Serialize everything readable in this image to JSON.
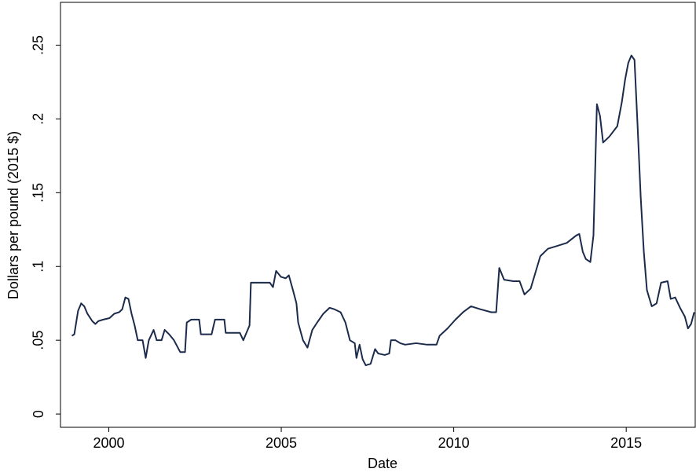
{
  "chart_data": {
    "type": "line",
    "x_label": "Date",
    "y_label": "Dollars per pound (2015 $)",
    "xlim": [
      1998.6,
      2017.0
    ],
    "ylim": [
      -0.009,
      0.279
    ],
    "xticks": [
      2000,
      2005,
      2010,
      2015
    ],
    "yticks": [
      0,
      {
        "value": 0.05,
        "label": ".05"
      },
      {
        "value": 0.1,
        "label": ".1"
      },
      {
        "value": 0.15,
        "label": ".15"
      },
      {
        "value": 0.2,
        "label": ".2"
      },
      {
        "value": 0.25,
        "label": ".25"
      }
    ],
    "grid": false,
    "series": [
      {
        "color": "#1c2b4b",
        "x": [
          1998.93,
          1999.0,
          1999.11,
          1999.2,
          1999.29,
          1999.38,
          1999.52,
          1999.61,
          1999.7,
          1999.84,
          2000.02,
          2000.16,
          2000.3,
          2000.39,
          2000.48,
          2000.57,
          2000.66,
          2000.75,
          2000.84,
          2000.98,
          2001.07,
          2001.16,
          2001.3,
          2001.39,
          2001.53,
          2001.62,
          2001.75,
          2001.89,
          2001.98,
          2002.07,
          2002.21,
          2002.26,
          2002.39,
          2002.62,
          2002.67,
          2002.98,
          2003.08,
          2003.35,
          2003.39,
          2003.8,
          2003.9,
          2004.08,
          2004.12,
          2004.67,
          2004.76,
          2004.85,
          2004.99,
          2005.13,
          2005.22,
          2005.35,
          2005.44,
          2005.49,
          2005.63,
          2005.76,
          2005.9,
          2006.04,
          2006.22,
          2006.4,
          2006.54,
          2006.72,
          2006.86,
          2006.99,
          2007.13,
          2007.18,
          2007.27,
          2007.36,
          2007.45,
          2007.59,
          2007.72,
          2007.81,
          2008.0,
          2008.13,
          2008.18,
          2008.31,
          2008.45,
          2008.59,
          2008.91,
          2009.23,
          2009.5,
          2009.59,
          2009.82,
          2010.05,
          2010.27,
          2010.5,
          2010.77,
          2011.09,
          2011.23,
          2011.32,
          2011.46,
          2011.73,
          2011.91,
          2012.05,
          2012.23,
          2012.37,
          2012.51,
          2012.73,
          2013.01,
          2013.28,
          2013.55,
          2013.64,
          2013.74,
          2013.83,
          2013.96,
          2014.05,
          2014.15,
          2014.24,
          2014.33,
          2014.51,
          2014.74,
          2014.87,
          2014.97,
          2015.06,
          2015.15,
          2015.24,
          2015.33,
          2015.42,
          2015.51,
          2015.6,
          2015.74,
          2015.88,
          2016.01,
          2016.2,
          2016.29,
          2016.42,
          2016.56,
          2016.7,
          2016.79,
          2016.88,
          2016.97
        ],
        "values": [
          0.053,
          0.054,
          0.07,
          0.075,
          0.073,
          0.068,
          0.063,
          0.061,
          0.063,
          0.064,
          0.065,
          0.068,
          0.069,
          0.071,
          0.079,
          0.078,
          0.068,
          0.06,
          0.05,
          0.05,
          0.038,
          0.05,
          0.057,
          0.05,
          0.05,
          0.057,
          0.054,
          0.05,
          0.046,
          0.042,
          0.042,
          0.062,
          0.064,
          0.064,
          0.054,
          0.054,
          0.064,
          0.064,
          0.055,
          0.055,
          0.05,
          0.06,
          0.089,
          0.089,
          0.086,
          0.097,
          0.093,
          0.092,
          0.094,
          0.083,
          0.075,
          0.062,
          0.05,
          0.045,
          0.057,
          0.062,
          0.068,
          0.072,
          0.071,
          0.069,
          0.062,
          0.05,
          0.048,
          0.038,
          0.047,
          0.037,
          0.033,
          0.034,
          0.044,
          0.041,
          0.04,
          0.041,
          0.05,
          0.05,
          0.048,
          0.047,
          0.048,
          0.047,
          0.047,
          0.053,
          0.058,
          0.064,
          0.069,
          0.073,
          0.071,
          0.069,
          0.069,
          0.099,
          0.091,
          0.09,
          0.09,
          0.081,
          0.085,
          0.096,
          0.107,
          0.112,
          0.114,
          0.116,
          0.121,
          0.122,
          0.11,
          0.105,
          0.103,
          0.121,
          0.21,
          0.202,
          0.184,
          0.188,
          0.195,
          0.211,
          0.227,
          0.238,
          0.243,
          0.24,
          0.195,
          0.147,
          0.11,
          0.084,
          0.073,
          0.075,
          0.089,
          0.09,
          0.078,
          0.079,
          0.072,
          0.066,
          0.058,
          0.061,
          0.069
        ]
      }
    ]
  }
}
